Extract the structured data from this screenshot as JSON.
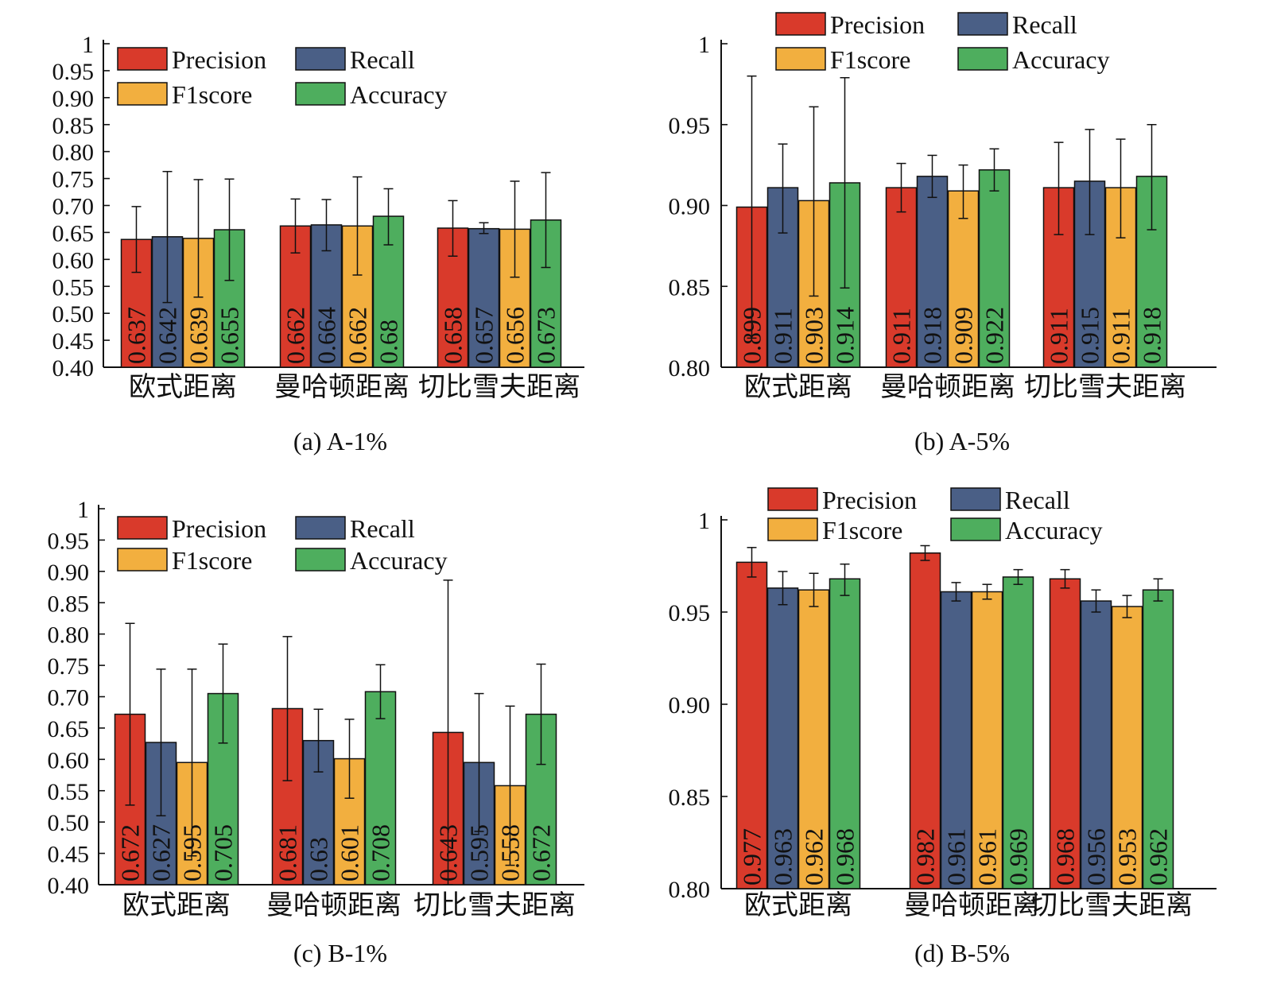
{
  "figure": {
    "categories": [
      "欧式距离",
      "曼哈顿距离",
      "切比雪夫距离"
    ],
    "series_colors": {
      "Precision": "#d93a2b",
      "Recall": "#4a5f86",
      "F1score": "#f2af3f",
      "Accuracy": "#4eae5e"
    }
  },
  "chart_data": [
    {
      "type": "bar",
      "caption": "(a) A-1%",
      "categories": [
        "欧式距离",
        "曼哈顿距离",
        "切比雪夫距离"
      ],
      "ylim": [
        0.4,
        1.0
      ],
      "yticks": [
        "0.40",
        "0.45",
        "0.50",
        "0.55",
        "0.60",
        "0.65",
        "0.70",
        "0.75",
        "0.80",
        "0.85",
        "0.90",
        "0.95",
        "1"
      ],
      "ytick_values": [
        0.4,
        0.45,
        0.5,
        0.55,
        0.6,
        0.65,
        0.7,
        0.75,
        0.8,
        0.85,
        0.9,
        0.95,
        1.0
      ],
      "legend_position": "top",
      "series": [
        {
          "name": "Precision",
          "values": [
            0.637,
            0.662,
            0.658
          ],
          "labels": [
            "0.637",
            "0.662",
            "0.658"
          ],
          "err_low": [
            0.576,
            0.612,
            0.606
          ],
          "err_high": [
            0.698,
            0.712,
            0.709
          ]
        },
        {
          "name": "Recall",
          "values": [
            0.642,
            0.664,
            0.657
          ],
          "labels": [
            "0.642",
            "0.664",
            "0.657"
          ],
          "err_low": [
            0.52,
            0.616,
            0.648
          ],
          "err_high": [
            0.763,
            0.711,
            0.668
          ]
        },
        {
          "name": "F1score",
          "values": [
            0.639,
            0.662,
            0.656
          ],
          "labels": [
            "0.639",
            "0.662",
            "0.656"
          ],
          "err_low": [
            0.53,
            0.571,
            0.567
          ],
          "err_high": [
            0.748,
            0.753,
            0.745
          ]
        },
        {
          "name": "Accuracy",
          "values": [
            0.655,
            0.68,
            0.673
          ],
          "labels": [
            "0.655",
            "0.68",
            "0.673"
          ],
          "err_low": [
            0.561,
            0.627,
            0.585
          ],
          "err_high": [
            0.749,
            0.731,
            0.761
          ]
        }
      ]
    },
    {
      "type": "bar",
      "caption": "(b) A-5%",
      "categories": [
        "欧式距离",
        "曼哈顿距离",
        "切比雪夫距离"
      ],
      "ylim": [
        0.8,
        1.0
      ],
      "yticks": [
        "0.80",
        "0.85",
        "0.90",
        "0.95",
        "1"
      ],
      "ytick_values": [
        0.8,
        0.85,
        0.9,
        0.95,
        1.0
      ],
      "legend_position": "above",
      "series": [
        {
          "name": "Precision",
          "values": [
            0.899,
            0.911,
            0.911
          ],
          "labels": [
            "0.899",
            "0.911",
            "0.911"
          ],
          "err_low": [
            0.818,
            0.896,
            0.882
          ],
          "err_high": [
            0.98,
            0.926,
            0.939
          ]
        },
        {
          "name": "Recall",
          "values": [
            0.911,
            0.918,
            0.915
          ],
          "labels": [
            "0.911",
            "0.918",
            "0.915"
          ],
          "err_low": [
            0.883,
            0.905,
            0.882
          ],
          "err_high": [
            0.938,
            0.931,
            0.947
          ]
        },
        {
          "name": "F1score",
          "values": [
            0.903,
            0.909,
            0.911
          ],
          "labels": [
            "0.903",
            "0.909",
            "0.911"
          ],
          "err_low": [
            0.844,
            0.892,
            0.88
          ],
          "err_high": [
            0.961,
            0.925,
            0.941
          ]
        },
        {
          "name": "Accuracy",
          "values": [
            0.914,
            0.922,
            0.918
          ],
          "labels": [
            "0.914",
            "0.922",
            "0.918"
          ],
          "err_low": [
            0.849,
            0.909,
            0.885
          ],
          "err_high": [
            0.979,
            0.935,
            0.95
          ]
        }
      ]
    },
    {
      "type": "bar",
      "caption": "(c) B-1%",
      "categories": [
        "欧式距离",
        "曼哈顿距离",
        "切比雪夫距离"
      ],
      "ylim": [
        0.4,
        1.0
      ],
      "yticks": [
        "0.40",
        "0.45",
        "0.50",
        "0.55",
        "0.60",
        "0.65",
        "0.70",
        "0.75",
        "0.80",
        "0.85",
        "0.90",
        "0.95",
        "1"
      ],
      "ytick_values": [
        0.4,
        0.45,
        0.5,
        0.55,
        0.6,
        0.65,
        0.7,
        0.75,
        0.8,
        0.85,
        0.9,
        0.95,
        1.0
      ],
      "legend_position": "top",
      "series": [
        {
          "name": "Precision",
          "values": [
            0.672,
            0.681,
            0.643
          ],
          "labels": [
            "0.672",
            "0.681",
            "0.643"
          ],
          "err_low": [
            0.527,
            0.566,
            0.4
          ],
          "err_high": [
            0.817,
            0.796,
            0.886
          ]
        },
        {
          "name": "Recall",
          "values": [
            0.627,
            0.63,
            0.595
          ],
          "labels": [
            "0.627",
            "0.63",
            "0.595"
          ],
          "err_low": [
            0.51,
            0.58,
            0.485
          ],
          "err_high": [
            0.744,
            0.68,
            0.705
          ]
        },
        {
          "name": "F1score",
          "values": [
            0.595,
            0.601,
            0.558
          ],
          "labels": [
            "0.595",
            "0.601",
            "0.558"
          ],
          "err_low": [
            0.446,
            0.538,
            0.431
          ],
          "err_high": [
            0.744,
            0.664,
            0.685
          ]
        },
        {
          "name": "Accuracy",
          "values": [
            0.705,
            0.708,
            0.672
          ],
          "labels": [
            "0.705",
            "0.708",
            "0.672"
          ],
          "err_low": [
            0.626,
            0.665,
            0.592
          ],
          "err_high": [
            0.784,
            0.751,
            0.752
          ]
        }
      ]
    },
    {
      "type": "bar",
      "caption": "(d) B-5%",
      "categories": [
        "欧式距离",
        "曼哈顿距离",
        "切比雪夫距离"
      ],
      "ylim": [
        0.8,
        1.0
      ],
      "yticks": [
        "0.80",
        "0.85",
        "0.90",
        "0.95",
        "1"
      ],
      "ytick_values": [
        0.8,
        0.85,
        0.9,
        0.95,
        1.0
      ],
      "legend_position": "above",
      "series": [
        {
          "name": "Precision",
          "values": [
            0.977,
            0.982,
            0.968
          ],
          "labels": [
            "0.977",
            "0.982",
            "0.968"
          ],
          "err_low": [
            0.969,
            0.978,
            0.963
          ],
          "err_high": [
            0.985,
            0.986,
            0.973
          ]
        },
        {
          "name": "Recall",
          "values": [
            0.963,
            0.961,
            0.956
          ],
          "labels": [
            "0.963",
            "0.961",
            "0.956"
          ],
          "err_low": [
            0.954,
            0.956,
            0.95
          ],
          "err_high": [
            0.972,
            0.966,
            0.962
          ]
        },
        {
          "name": "F1score",
          "values": [
            0.962,
            0.961,
            0.953
          ],
          "labels": [
            "0.962",
            "0.961",
            "0.953"
          ],
          "err_low": [
            0.953,
            0.957,
            0.947
          ],
          "err_high": [
            0.971,
            0.965,
            0.959
          ]
        },
        {
          "name": "Accuracy",
          "values": [
            0.968,
            0.969,
            0.962
          ],
          "labels": [
            "0.968",
            "0.969",
            "0.962"
          ],
          "err_low": [
            0.959,
            0.965,
            0.956
          ],
          "err_high": [
            0.976,
            0.973,
            0.968
          ]
        }
      ]
    }
  ]
}
